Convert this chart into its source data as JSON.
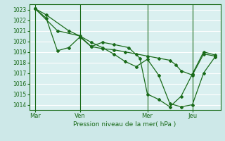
{
  "bg_color": "#cde8e8",
  "plot_bg_color": "#daf0f0",
  "grid_color": "#ffffff",
  "line_color": "#1a6b1a",
  "marker_color": "#1a6b1a",
  "xlabel": "Pression niveau de la mer( hPa )",
  "ylim": [
    1013.5,
    1023.5
  ],
  "yticks": [
    1014,
    1015,
    1016,
    1017,
    1018,
    1019,
    1020,
    1021,
    1022,
    1023
  ],
  "xtick_labels": [
    "Mar",
    "Ven",
    "Mer",
    "Jeu"
  ],
  "xtick_positions": [
    0.0,
    24.0,
    60.0,
    84.0
  ],
  "xlim": [
    -3,
    99
  ],
  "series1_x": [
    0,
    6,
    18,
    24,
    30,
    36,
    42,
    48,
    54,
    60,
    66,
    72,
    78,
    84,
    90,
    96
  ],
  "series1_y": [
    1023.1,
    1022.5,
    1021.0,
    1020.5,
    1019.9,
    1019.4,
    1018.8,
    1018.1,
    1017.6,
    1018.3,
    1016.8,
    1014.1,
    1013.8,
    1014.0,
    1017.0,
    1018.5
  ],
  "series2_x": [
    0,
    6,
    12,
    18,
    24,
    30,
    36,
    42,
    48,
    54,
    60,
    66,
    72,
    75,
    78,
    84,
    90,
    96
  ],
  "series2_y": [
    1023.1,
    1022.2,
    1019.1,
    1019.4,
    1020.4,
    1019.5,
    1019.3,
    1019.2,
    1019.0,
    1018.8,
    1018.6,
    1018.4,
    1018.2,
    1017.8,
    1017.2,
    1016.8,
    1018.8,
    1018.6
  ],
  "series3_x": [
    0,
    12,
    24,
    30,
    36,
    42,
    50,
    56,
    60,
    66,
    72,
    78,
    84,
    90,
    96
  ],
  "series3_y": [
    1023.1,
    1021.0,
    1020.5,
    1019.5,
    1019.9,
    1019.7,
    1019.4,
    1018.4,
    1015.0,
    1014.5,
    1013.8,
    1014.8,
    1016.9,
    1019.0,
    1018.7
  ]
}
